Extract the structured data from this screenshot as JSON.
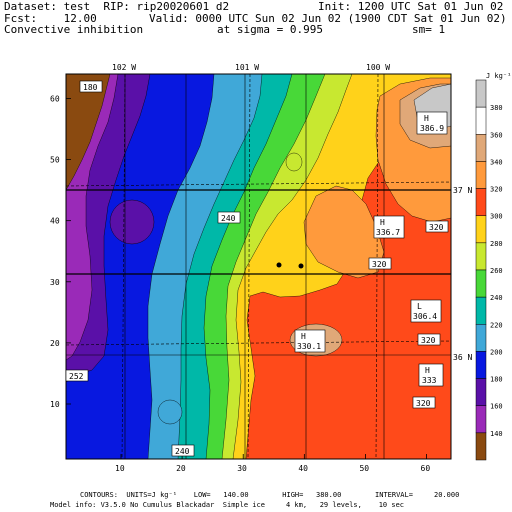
{
  "header": {
    "dataset": "Dataset: test  RIP: rip20020601 d2",
    "init": "Init: 1200 UTC Sat 01 Jun 02",
    "fcst": "Fcst:    12.00",
    "valid": "Valid: 0000 UTC Sun 02 Jun 02 (1900 CDT Sat 01 Jun 02)",
    "field": "Convective inhibition",
    "sigma": "at sigma = 0.995",
    "sm": "sm= 1"
  },
  "footer": {
    "contours": "CONTOURS:  UNITS=J kg⁻¹    LOW=   140.00        HIGH=   380.00        INTERVAL=     20.000",
    "model": "Model info: V3.5.0 No Cumulus Blackadar  Simple ice     4 km,   29 levels,    10 sec"
  },
  "axes": {
    "x_ticks": [
      "10",
      "20",
      "30",
      "40",
      "50",
      "60"
    ],
    "y_ticks": [
      "10",
      "20",
      "30",
      "40",
      "50",
      "60"
    ],
    "longitudes": [
      "102 W",
      "101 W",
      "100 W"
    ],
    "latitudes": [
      "37 N",
      "36 N"
    ]
  },
  "colorbar": {
    "unit": "J kg⁻¹",
    "levels": [
      "380",
      "360",
      "340",
      "320",
      "300",
      "280",
      "260",
      "240",
      "220",
      "200",
      "180",
      "160",
      "140"
    ],
    "colors": [
      "#c8c8c8",
      "#ffffff",
      "#e0a878",
      "#ff9a3c",
      "#ff4a1a",
      "#ffd21a",
      "#c8e830",
      "#48d838",
      "#00b8a8",
      "#40a8d8",
      "#0818e0",
      "#5a10a8",
      "#9a2ab8",
      "#8a4a10"
    ]
  },
  "labels": {
    "c180": "180",
    "c240a": "240",
    "c240b": "240",
    "c320a": "320",
    "c320b": "320",
    "c320c": "320",
    "c320d": "320",
    "c380": "380",
    "cbl": "252",
    "h1": "H",
    "h1v": "386.9",
    "h2": "H",
    "h2v": "336.7",
    "h3": "H",
    "h3v": "330.1",
    "h4": "H",
    "h4v": "333",
    "l1": "L",
    "l1v": "306.4"
  },
  "colors": {
    "c140": "#8a4a10",
    "c160": "#9a2ab8",
    "c180": "#5a10a8",
    "c200": "#0818e0",
    "c220": "#40a8d8",
    "c240": "#00b8a8",
    "c260": "#48d838",
    "c280": "#c8e830",
    "c300": "#ffd21a",
    "c320": "#ff4a1a",
    "c340": "#ff9a3c",
    "c360": "#e0a878",
    "c380": "#c8c8c8"
  }
}
